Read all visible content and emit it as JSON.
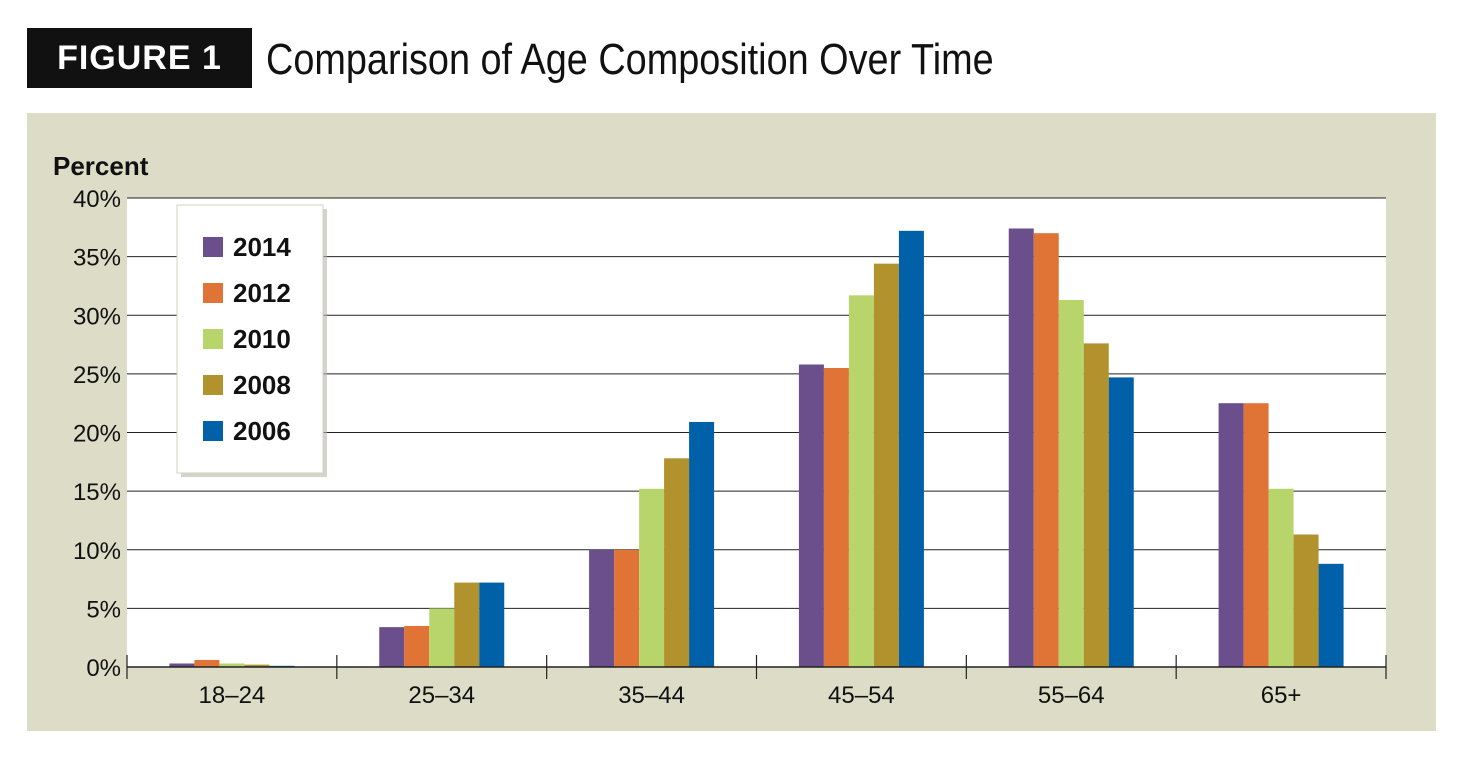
{
  "figure": {
    "badge": "FIGURE 1",
    "title": "Comparison of Age Composition Over Time"
  },
  "chart_data": {
    "type": "bar",
    "title": "Comparison of Age Composition Over Time",
    "ylabel": "Percent",
    "xlabel": "",
    "ylim": [
      0,
      40
    ],
    "y_ticks": [
      0,
      5,
      10,
      15,
      20,
      25,
      30,
      35,
      40
    ],
    "y_tick_labels": [
      "0%",
      "5%",
      "10%",
      "15%",
      "20%",
      "25%",
      "30%",
      "35%",
      "40%"
    ],
    "categories": [
      "18–24",
      "25–34",
      "35–44",
      "45–54",
      "55–64",
      "65+"
    ],
    "grid": true,
    "legend_position": "top-left",
    "series": [
      {
        "name": "2014",
        "color": "#6b4f8c",
        "values": [
          0.3,
          3.4,
          10.0,
          25.8,
          37.4,
          22.5
        ]
      },
      {
        "name": "2012",
        "color": "#e07437",
        "values": [
          0.6,
          3.5,
          10.0,
          25.5,
          37.0,
          22.5
        ]
      },
      {
        "name": "2010",
        "color": "#b8d56b",
        "values": [
          0.3,
          5.0,
          15.2,
          31.7,
          31.3,
          15.2
        ]
      },
      {
        "name": "2008",
        "color": "#b2922c",
        "values": [
          0.2,
          7.2,
          17.8,
          34.4,
          27.6,
          11.3
        ]
      },
      {
        "name": "2006",
        "color": "#0060a8",
        "values": [
          0.1,
          7.2,
          20.9,
          37.2,
          24.7,
          8.8
        ]
      }
    ]
  }
}
